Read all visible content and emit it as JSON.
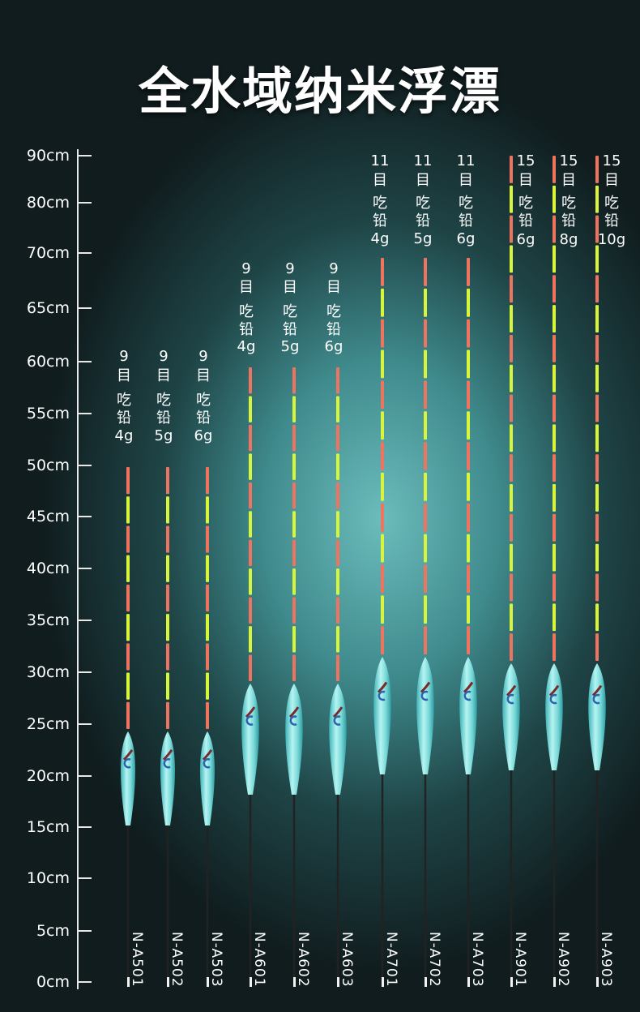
{
  "title": "全水域纳米浮漂",
  "axis_labels": [
    "90cm",
    "80cm",
    "70cm",
    "65cm",
    "60cm",
    "55cm",
    "50cm",
    "45cm",
    "40cm",
    "35cm",
    "30cm",
    "25cm",
    "20cm",
    "15cm",
    "10cm",
    "5cm",
    "0cm"
  ],
  "colors": {
    "tip_red": "#f0735f",
    "tip_yellow": "#d8f53a",
    "body": "#7fe0df",
    "stem": "#222222"
  },
  "products": [
    {
      "model": "N-A501",
      "mesh": "9",
      "mesh_unit": "目",
      "eat": "吃",
      "lead": "铅",
      "weight": "4g"
    },
    {
      "model": "N-A502",
      "mesh": "9",
      "mesh_unit": "目",
      "eat": "吃",
      "lead": "铅",
      "weight": "5g"
    },
    {
      "model": "N-A503",
      "mesh": "9",
      "mesh_unit": "目",
      "eat": "吃",
      "lead": "铅",
      "weight": "6g"
    },
    {
      "model": "N-A601",
      "mesh": "9",
      "mesh_unit": "目",
      "eat": "吃",
      "lead": "铅",
      "weight": "4g"
    },
    {
      "model": "N-A602",
      "mesh": "9",
      "mesh_unit": "目",
      "eat": "吃",
      "lead": "铅",
      "weight": "5g"
    },
    {
      "model": "N-A603",
      "mesh": "9",
      "mesh_unit": "目",
      "eat": "吃",
      "lead": "铅",
      "weight": "6g"
    },
    {
      "model": "N-A701",
      "mesh": "11",
      "mesh_unit": "目",
      "eat": "吃",
      "lead": "铅",
      "weight": "4g"
    },
    {
      "model": "N-A702",
      "mesh": "11",
      "mesh_unit": "目",
      "eat": "吃",
      "lead": "铅",
      "weight": "5g"
    },
    {
      "model": "N-A703",
      "mesh": "11",
      "mesh_unit": "目",
      "eat": "吃",
      "lead": "铅",
      "weight": "6g"
    },
    {
      "model": "N-A901",
      "mesh": "15",
      "mesh_unit": "目",
      "eat": "吃",
      "lead": "铅",
      "weight": "6g"
    },
    {
      "model": "N-A902",
      "mesh": "15",
      "mesh_unit": "目",
      "eat": "吃",
      "lead": "铅",
      "weight": "8g"
    },
    {
      "model": "N-A903",
      "mesh": "15",
      "mesh_unit": "目",
      "eat": "吃",
      "lead": "铅",
      "weight": "10g"
    }
  ]
}
